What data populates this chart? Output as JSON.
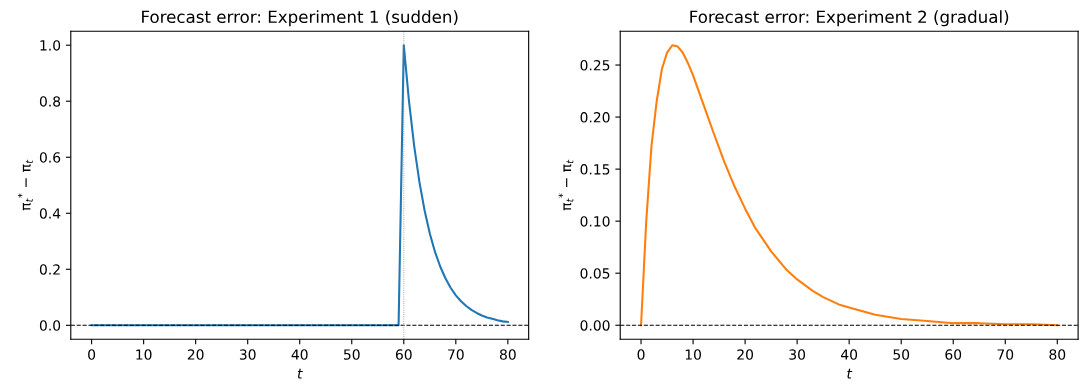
{
  "chart_data": [
    {
      "type": "line",
      "title": "Forecast error: Experiment 1 (sudden)",
      "xlabel": "t",
      "ylabel": "π$_{t}$$^{*}$ − π$_{t}$",
      "series": [
        {
          "color": "#1f77b4",
          "x": [
            0,
            5,
            10,
            15,
            20,
            25,
            30,
            35,
            40,
            45,
            50,
            55,
            59,
            60,
            61,
            62,
            63,
            64,
            65,
            66,
            67,
            68,
            69,
            70,
            71,
            72,
            73,
            74,
            75,
            76,
            77,
            78,
            79,
            80
          ],
          "values": [
            0,
            0,
            0,
            0,
            0,
            0,
            0,
            0,
            0,
            0,
            0,
            0,
            0,
            1.0,
            0.8,
            0.64,
            0.512,
            0.41,
            0.328,
            0.262,
            0.21,
            0.168,
            0.134,
            0.107,
            0.086,
            0.069,
            0.055,
            0.044,
            0.035,
            0.028,
            0.023,
            0.018,
            0.014,
            0.012
          ]
        }
      ],
      "xlim": [
        -4,
        84
      ],
      "ylim": [
        -0.05,
        1.05
      ],
      "xticks": [
        0,
        10,
        20,
        30,
        40,
        50,
        60,
        70,
        80
      ],
      "yticks": [
        {
          "value": 0,
          "label": "0.0"
        },
        0.2,
        0.4,
        0.6,
        0.8,
        {
          "value": 1,
          "label": "1.0"
        }
      ],
      "ref_lines": [
        {
          "axis": "y",
          "value": 0,
          "color": "#000000",
          "line_style": "dashed"
        },
        {
          "axis": "x",
          "value": 60,
          "color": "#808080",
          "line_style": "dotted"
        }
      ],
      "grid": false,
      "legend": false
    },
    {
      "type": "line",
      "title": "Forecast error: Experiment 2 (gradual)",
      "xlabel": "t",
      "ylabel": "π$_{t}$$^{*}$ − π$_{t}$",
      "series": [
        {
          "color": "#ff7f0e",
          "x": [
            0,
            1,
            2,
            3,
            4,
            5,
            6,
            7,
            8,
            9,
            10,
            12,
            14,
            16,
            18,
            20,
            22,
            25,
            28,
            30,
            33,
            35,
            38,
            40,
            45,
            50,
            55,
            60,
            65,
            70,
            75,
            80
          ],
          "values": [
            0,
            0.1,
            0.172,
            0.215,
            0.246,
            0.262,
            0.269,
            0.268,
            0.262,
            0.252,
            0.24,
            0.212,
            0.184,
            0.157,
            0.133,
            0.112,
            0.093,
            0.071,
            0.053,
            0.044,
            0.033,
            0.027,
            0.02,
            0.017,
            0.01,
            0.006,
            0.004,
            0.002,
            0.002,
            0.001,
            0.001,
            0.0
          ]
        }
      ],
      "xlim": [
        -4,
        84
      ],
      "ylim": [
        -0.0135,
        0.2825
      ],
      "xticks": [
        0,
        10,
        20,
        30,
        40,
        50,
        60,
        70,
        80
      ],
      "yticks": [
        {
          "value": 0,
          "label": "0.00"
        },
        0.05,
        {
          "value": 0.1,
          "label": "0.10"
        },
        0.15,
        {
          "value": 0.2,
          "label": "0.20"
        },
        0.25
      ],
      "ref_lines": [
        {
          "axis": "y",
          "value": 0,
          "color": "#000000",
          "line_style": "dashed"
        }
      ],
      "grid": false,
      "legend": false
    }
  ]
}
